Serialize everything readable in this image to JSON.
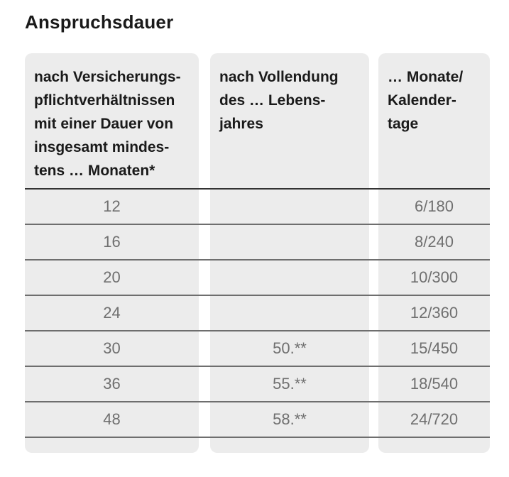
{
  "page": {
    "title": "Anspruchsdauer"
  },
  "table": {
    "headers": [
      "nach Versicherungs-\npflichtverhältnissen\nmit einer Dauer von\ninsgesamt mindes-\ntens … Monaten*",
      "nach Vollendung\ndes … Lebens-\njahres",
      "… Monate/\nKalender-\ntage"
    ],
    "rows": [
      [
        "12",
        "",
        "6/180"
      ],
      [
        "16",
        "",
        "8/240"
      ],
      [
        "20",
        "",
        "10/300"
      ],
      [
        "24",
        "",
        "12/360"
      ],
      [
        "30",
        "50.**",
        "15/450"
      ],
      [
        "36",
        "55.**",
        "18/540"
      ],
      [
        "48",
        "58.**",
        "24/720"
      ]
    ],
    "colors": {
      "cell_background": "#ececec",
      "header_text": "#1a1a1a",
      "data_text": "#6f6f6f",
      "header_border": "#333333",
      "row_border": "#6e6e6e"
    }
  }
}
